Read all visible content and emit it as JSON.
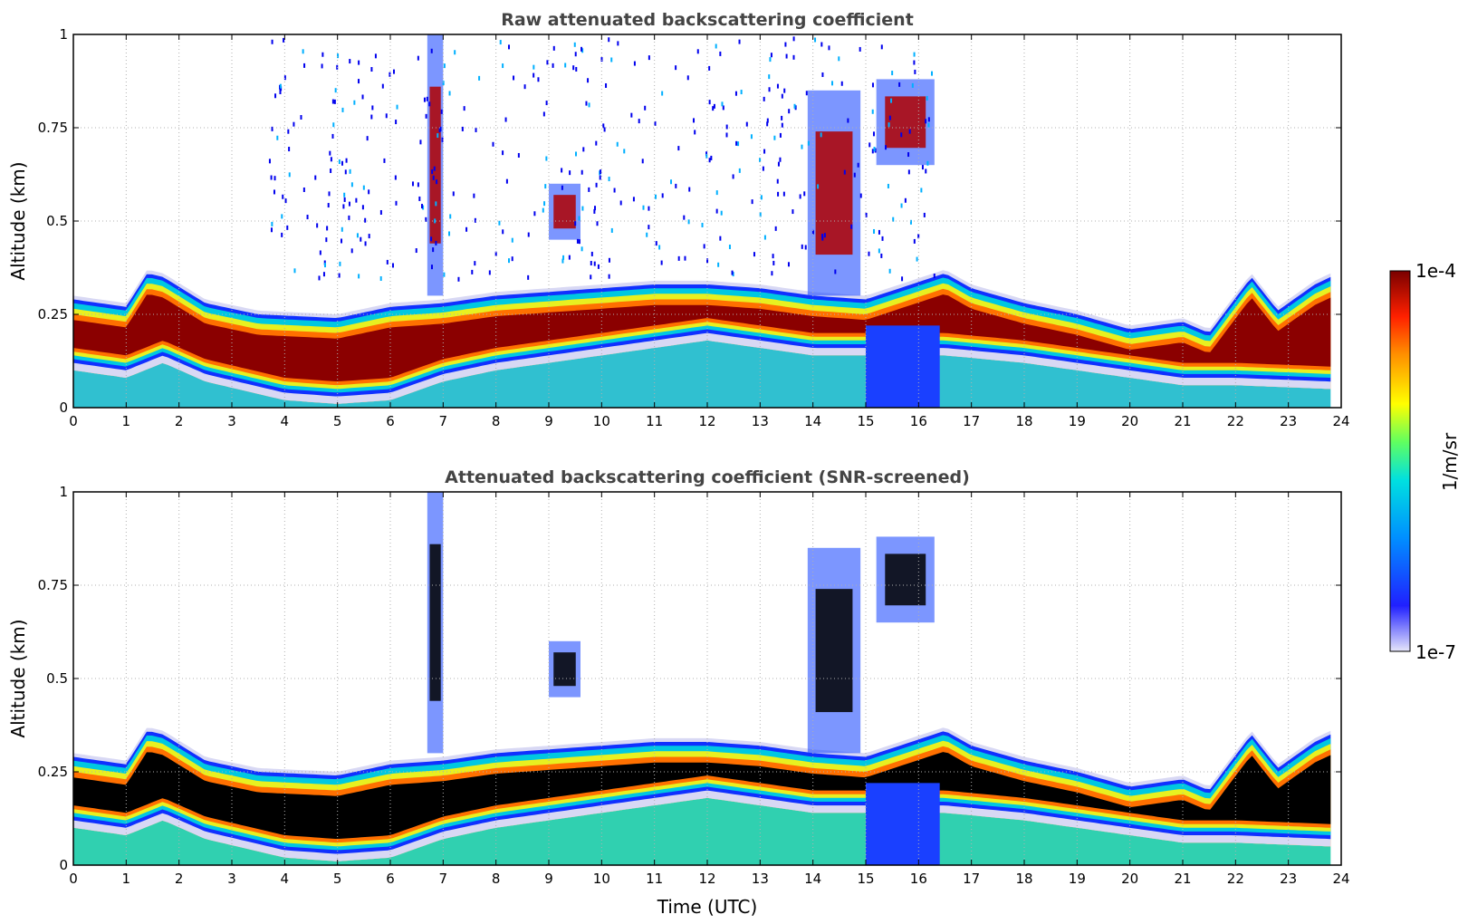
{
  "chart_data": [
    {
      "type": "heatmap",
      "title": "Raw attenuated backscattering coefficient",
      "xlabel": "",
      "ylabel": "Altitude (km)",
      "xlim": [
        0,
        24
      ],
      "ylim": [
        0,
        1
      ],
      "xticks": [
        "0",
        "1",
        "2",
        "3",
        "4",
        "5",
        "6",
        "7",
        "8",
        "9",
        "10",
        "11",
        "12",
        "13",
        "14",
        "15",
        "16",
        "17",
        "18",
        "19",
        "20",
        "21",
        "22",
        "23",
        "24"
      ],
      "yticks": [
        "0",
        "0.25",
        "0.5",
        "0.75",
        "1"
      ],
      "grid": true,
      "layer_top_km": [
        {
          "t": 0,
          "z": 0.3
        },
        {
          "t": 1,
          "z": 0.28
        },
        {
          "t": 1.4,
          "z": 0.37
        },
        {
          "t": 1.7,
          "z": 0.36
        },
        {
          "t": 2.5,
          "z": 0.29
        },
        {
          "t": 3.5,
          "z": 0.26
        },
        {
          "t": 5,
          "z": 0.25
        },
        {
          "t": 6,
          "z": 0.28
        },
        {
          "t": 7,
          "z": 0.29
        },
        {
          "t": 8,
          "z": 0.31
        },
        {
          "t": 9,
          "z": 0.32
        },
        {
          "t": 11,
          "z": 0.34
        },
        {
          "t": 12,
          "z": 0.34
        },
        {
          "t": 13,
          "z": 0.33
        },
        {
          "t": 14,
          "z": 0.31
        },
        {
          "t": 15,
          "z": 0.3
        },
        {
          "t": 16.5,
          "z": 0.37
        },
        {
          "t": 17,
          "z": 0.33
        },
        {
          "t": 18,
          "z": 0.29
        },
        {
          "t": 19,
          "z": 0.26
        },
        {
          "t": 20,
          "z": 0.22
        },
        {
          "t": 21,
          "z": 0.24
        },
        {
          "t": 21.5,
          "z": 0.21
        },
        {
          "t": 22.3,
          "z": 0.36
        },
        {
          "t": 22.8,
          "z": 0.27
        },
        {
          "t": 23.5,
          "z": 0.34
        },
        {
          "t": 23.8,
          "z": 0.36
        }
      ],
      "aerosol_base_km": [
        {
          "t": 0,
          "z": 0.1
        },
        {
          "t": 1,
          "z": 0.08
        },
        {
          "t": 1.7,
          "z": 0.12
        },
        {
          "t": 2.5,
          "z": 0.07
        },
        {
          "t": 4,
          "z": 0.02
        },
        {
          "t": 5,
          "z": 0.01
        },
        {
          "t": 6,
          "z": 0.02
        },
        {
          "t": 7,
          "z": 0.07
        },
        {
          "t": 8,
          "z": 0.1
        },
        {
          "t": 9,
          "z": 0.12
        },
        {
          "t": 12,
          "z": 0.18
        },
        {
          "t": 14,
          "z": 0.14
        },
        {
          "t": 16.5,
          "z": 0.14
        },
        {
          "t": 18,
          "z": 0.12
        },
        {
          "t": 20,
          "z": 0.08
        },
        {
          "t": 21,
          "z": 0.06
        },
        {
          "t": 22,
          "z": 0.06
        },
        {
          "t": 23.8,
          "z": 0.05
        }
      ],
      "cloud_features": [
        {
          "t_start": 15.2,
          "t_end": 16.3,
          "z_bottom": 0.65,
          "z_top": 0.88
        },
        {
          "t_start": 13.9,
          "t_end": 14.9,
          "z_bottom": 0.3,
          "z_top": 0.85
        },
        {
          "t_start": 6.7,
          "t_end": 7.0,
          "z_bottom": 0.3,
          "z_top": 1.0
        },
        {
          "t_start": 9.0,
          "t_end": 9.6,
          "z_bottom": 0.45,
          "z_top": 0.6
        }
      ]
    },
    {
      "type": "heatmap",
      "title": "Attenuated backscattering coefficient (SNR-screened)",
      "xlabel": "Time (UTC)",
      "ylabel": "Altitude (km)",
      "xlim": [
        0,
        24
      ],
      "ylim": [
        0,
        1
      ],
      "xticks": [
        "0",
        "1",
        "2",
        "3",
        "4",
        "5",
        "6",
        "7",
        "8",
        "9",
        "10",
        "11",
        "12",
        "13",
        "14",
        "15",
        "16",
        "17",
        "18",
        "19",
        "20",
        "21",
        "22",
        "23",
        "24"
      ],
      "yticks": [
        "0",
        "0.25",
        "0.5",
        "0.75",
        "1"
      ],
      "grid": true
    }
  ],
  "colorbar": {
    "label": "1/m/sr",
    "max_label": "1e-4",
    "min_label": "1e-7",
    "scale": "log",
    "range": [
      1e-07,
      0.0001
    ],
    "colors": [
      "#e6e6fa",
      "#0000ff",
      "#00bfff",
      "#40e0d0",
      "#ffff00",
      "#ff8c00",
      "#ff0000",
      "#8b0000"
    ]
  }
}
